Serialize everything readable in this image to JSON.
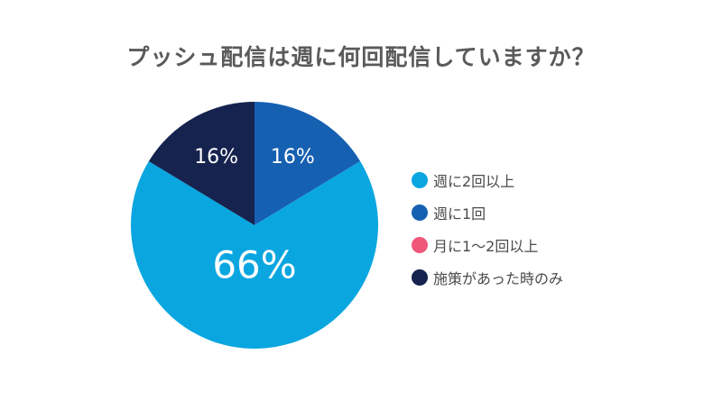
{
  "title": "プッシュ配信は週に何回配信していますか？",
  "chart_data": {
    "type": "pie",
    "title": "プッシュ配信は週に何回配信していますか？",
    "categories": [
      "週に2回以上",
      "週に1回",
      "月に1～2回以上",
      "施策があった時のみ"
    ],
    "values": [
      66,
      16,
      0,
      16
    ],
    "labels": [
      "66%",
      "16%",
      "",
      "16%"
    ],
    "colors": [
      "#0aa6e0",
      "#1660b2",
      "#f0587a",
      "#16234f"
    ],
    "legend_position": "right"
  }
}
